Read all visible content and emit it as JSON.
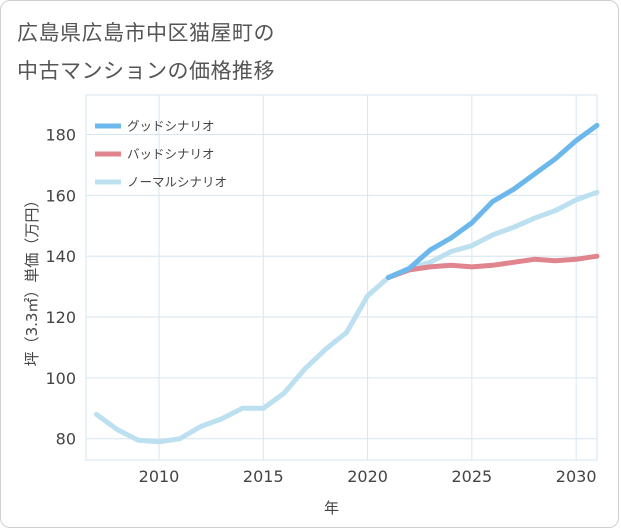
{
  "title": {
    "line1": "広島県広島市中区猫屋町の",
    "line2": "中古マンションの価格推移"
  },
  "colors": {
    "good": "#6cb8ec",
    "bad": "#e0848e",
    "normal": "#bde0f0",
    "grid": "#d6e6f0"
  },
  "chart_data": {
    "type": "line",
    "xlabel": "年",
    "ylabel": "坪（3.3㎡）単価（万円）",
    "xlim": [
      2006.5,
      2031
    ],
    "ylim": [
      73,
      193
    ],
    "xticks": [
      2010,
      2015,
      2020,
      2025,
      2030
    ],
    "xtick_labels": [
      "2010",
      "2015",
      "2020",
      "2025",
      "2030"
    ],
    "yticks": [
      80,
      100,
      120,
      140,
      160,
      180
    ],
    "ytick_labels": [
      "80",
      "100",
      "120",
      "140",
      "160",
      "180"
    ],
    "legend_position": "top-left",
    "series": [
      {
        "name": "グッドシナリオ",
        "color_key": "good",
        "x": [
          2021,
          2022,
          2023,
          2024,
          2025,
          2026,
          2027,
          2028,
          2029,
          2030,
          2031
        ],
        "values": [
          133,
          136,
          142,
          146,
          151,
          158,
          162,
          167,
          172,
          178,
          183
        ]
      },
      {
        "name": "バッドシナリオ",
        "color_key": "bad",
        "x": [
          2021,
          2022,
          2023,
          2024,
          2025,
          2026,
          2027,
          2028,
          2029,
          2030,
          2031
        ],
        "values": [
          133,
          135.5,
          136.5,
          137,
          136.5,
          137,
          138,
          139,
          138.5,
          139,
          140
        ]
      },
      {
        "name": "ノーマルシナリオ",
        "color_key": "normal",
        "x": [
          2007,
          2008,
          2009,
          2010,
          2011,
          2012,
          2013,
          2014,
          2015,
          2016,
          2017,
          2018,
          2019,
          2020,
          2021,
          2022,
          2023,
          2024,
          2025,
          2026,
          2027,
          2028,
          2029,
          2030,
          2031
        ],
        "values": [
          88,
          83,
          79.5,
          79,
          80,
          84,
          86.5,
          90,
          90,
          95,
          103,
          109.5,
          115,
          127,
          133,
          136,
          138,
          141.5,
          143.5,
          147,
          149.5,
          152.5,
          155,
          158.5,
          161
        ]
      }
    ]
  }
}
